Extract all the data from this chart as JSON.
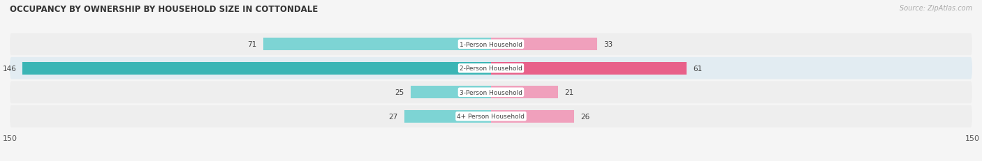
{
  "title": "OCCUPANCY BY OWNERSHIP BY HOUSEHOLD SIZE IN COTTONDALE",
  "source": "Source: ZipAtlas.com",
  "categories": [
    "1-Person Household",
    "2-Person Household",
    "3-Person Household",
    "4+ Person Household"
  ],
  "owner_values": [
    71,
    146,
    25,
    27
  ],
  "renter_values": [
    33,
    61,
    21,
    26
  ],
  "owner_color_light": "#7dd4d4",
  "owner_color_dark": "#3ab5b5",
  "renter_color_light": "#f0a0bc",
  "renter_color_dark": "#e8608a",
  "label_bg_color": "#ffffff",
  "row_bg_even": "#f2f2f2",
  "row_bg_odd": "#e8f0f5",
  "axis_max": 150,
  "bar_height": 0.52,
  "background_color": "#f5f5f5",
  "owner_color": "#5bbfbf",
  "renter_color": "#f080a8",
  "value_color": "#444444",
  "value_color_on_bar": "#ffffff"
}
